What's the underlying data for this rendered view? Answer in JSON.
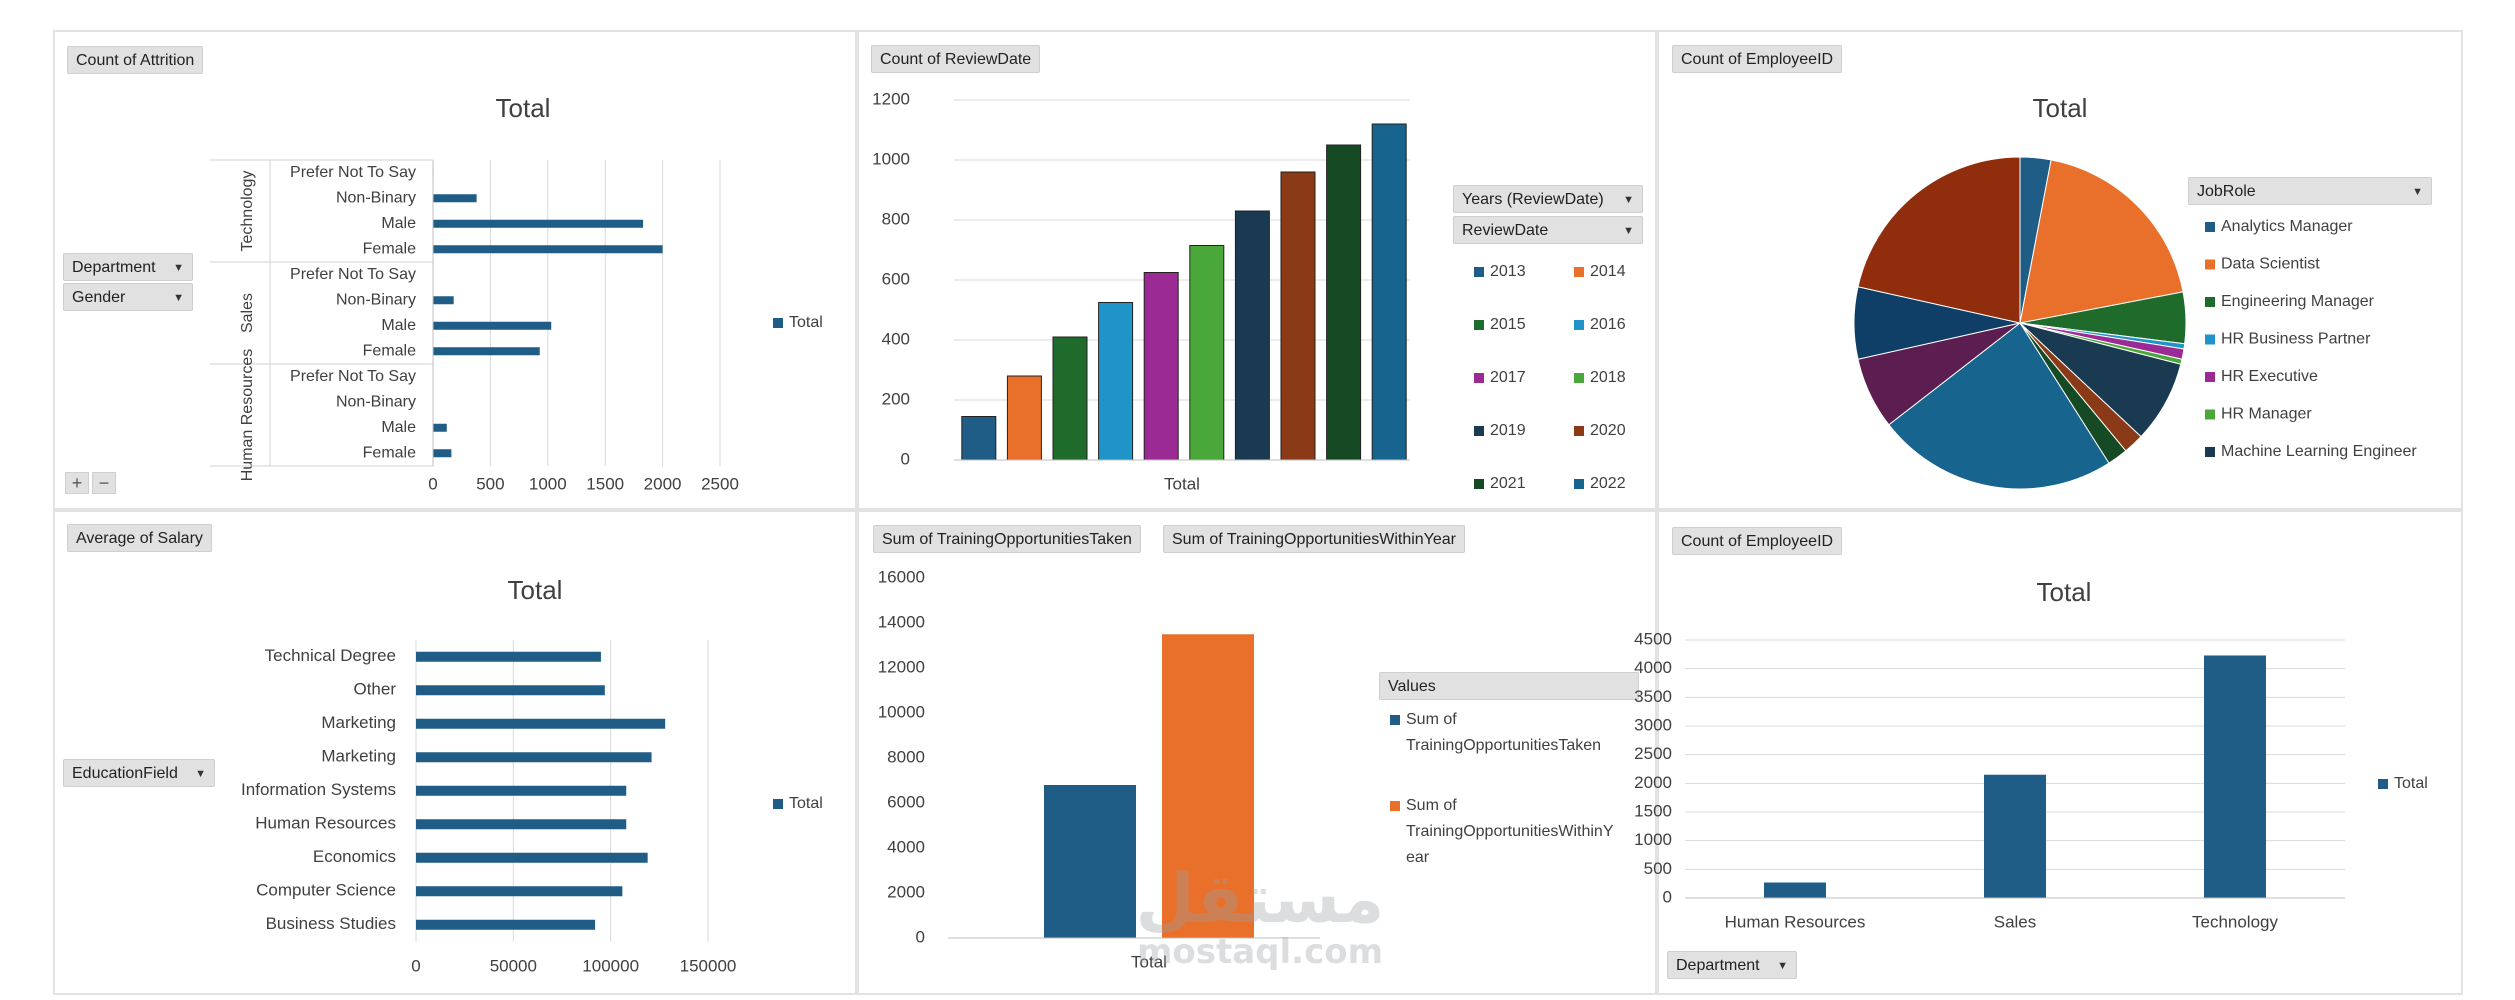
{
  "colors": {
    "navy": "#1f5c86",
    "orange": "#e8702a",
    "pie": [
      "#1f5c86",
      "#e8702a",
      "#1e6b2c",
      "#1e94c8",
      "#9b2a95",
      "#4aa83a",
      "#1a3a52",
      "#8a3a17",
      "#164a25",
      "#17658f",
      "#5c1d50",
      "#0f3f66",
      "#8f2d0c"
    ]
  },
  "panels": {
    "p1": {
      "field_button": "Count of Attrition",
      "filters": [
        "Department",
        "Gender"
      ],
      "plus": "+",
      "minus": "−"
    },
    "p2": {
      "field_button": "Count of ReviewDate",
      "legend_fields": [
        "Years (ReviewDate)",
        "ReviewDate"
      ]
    },
    "p3": {
      "field_button": "Count of EmployeeID",
      "legend_field": "JobRole"
    },
    "p4": {
      "field_button": "Average of Salary",
      "filter": "EducationField"
    },
    "p5": {
      "field_buttons": [
        "Sum of TrainingOpportunitiesTaken",
        "Sum of TrainingOpportunitiesWithinYear"
      ],
      "legend_field": "Values"
    },
    "p6": {
      "field_button": "Count of EmployeeID",
      "filter": "Department"
    }
  },
  "watermark": {
    "arabic": "مستقل",
    "latin": "mostaql.com"
  },
  "chart_data": [
    {
      "type": "bar",
      "orientation": "horizontal",
      "title": "Total",
      "groups": [
        {
          "name": "Technology",
          "categories": [
            "Prefer Not To Say",
            "Non-Binary",
            "Male",
            "Female"
          ],
          "values": [
            5,
            380,
            1830,
            2000
          ]
        },
        {
          "name": "Sales",
          "categories": [
            "Prefer Not To Say",
            "Non-Binary",
            "Male",
            "Female"
          ],
          "values": [
            0,
            180,
            1030,
            930
          ]
        },
        {
          "name": "Human Resources",
          "categories": [
            "Prefer Not To Say",
            "Non-Binary",
            "Male",
            "Female"
          ],
          "values": [
            0,
            0,
            120,
            160
          ]
        }
      ],
      "series": [
        {
          "name": "Total"
        }
      ],
      "xticks": [
        "0",
        "500",
        "1000",
        "1500",
        "2000",
        "2500"
      ],
      "xlim": [
        0,
        2500
      ],
      "legend": "right",
      "grid": true
    },
    {
      "type": "bar",
      "title": "",
      "categories": [
        "Total"
      ],
      "series": [
        {
          "name": "2013",
          "values": [
            145
          ]
        },
        {
          "name": "2014",
          "values": [
            280
          ]
        },
        {
          "name": "2015",
          "values": [
            410
          ]
        },
        {
          "name": "2016",
          "values": [
            525
          ]
        },
        {
          "name": "2017",
          "values": [
            625
          ]
        },
        {
          "name": "2018",
          "values": [
            715
          ]
        },
        {
          "name": "2019",
          "values": [
            830
          ]
        },
        {
          "name": "2020",
          "values": [
            960
          ]
        },
        {
          "name": "2021",
          "values": [
            1050
          ]
        },
        {
          "name": "2022",
          "values": [
            1120
          ]
        }
      ],
      "yticks": [
        "0",
        "200",
        "400",
        "600",
        "800",
        "1000",
        "1200"
      ],
      "ylim": [
        0,
        1200
      ],
      "legend": "right",
      "grid": true
    },
    {
      "type": "pie",
      "title": "Total",
      "labels": [
        "Analytics Manager",
        "Data Scientist",
        "Engineering Manager",
        "HR Business Partner",
        "HR Executive",
        "HR Manager",
        "Machine Learning Engineer",
        "",
        "",
        "",
        "",
        "",
        ""
      ],
      "values": [
        3,
        19,
        5,
        0.5,
        1,
        0.5,
        8,
        2,
        2,
        23.5,
        7,
        7,
        21.5
      ],
      "legend": "right"
    },
    {
      "type": "bar",
      "orientation": "horizontal",
      "title": "Total",
      "categories": [
        "Technical Degree",
        "Other",
        "Marketing",
        "Marketing",
        "Information Systems",
        "Human Resources",
        "Economics",
        "Computer Science",
        "Business Studies"
      ],
      "series": [
        {
          "name": "Total",
          "values": [
            95000,
            97000,
            128000,
            121000,
            108000,
            108000,
            119000,
            106000,
            92000
          ]
        }
      ],
      "xticks": [
        "0",
        "50000",
        "100000",
        "150000"
      ],
      "xlim": [
        0,
        150000
      ],
      "legend": "right",
      "grid": true
    },
    {
      "type": "bar",
      "title": "",
      "categories": [
        "Total"
      ],
      "series": [
        {
          "name": "Sum of TrainingOpportunitiesTaken",
          "values": [
            6800
          ]
        },
        {
          "name": "Sum of TrainingOpportunitiesWithinYear",
          "values": [
            13500
          ]
        }
      ],
      "yticks": [
        "0",
        "2000",
        "4000",
        "6000",
        "8000",
        "10000",
        "12000",
        "14000",
        "16000"
      ],
      "ylim": [
        0,
        16000
      ],
      "legend": "right",
      "grid": true
    },
    {
      "type": "bar",
      "title": "Total",
      "categories": [
        "Human Resources",
        "Sales",
        "Technology"
      ],
      "series": [
        {
          "name": "Total",
          "values": [
            270,
            2150,
            4230
          ]
        }
      ],
      "yticks": [
        "0",
        "500",
        "1000",
        "1500",
        "2000",
        "2500",
        "3000",
        "3500",
        "4000",
        "4500"
      ],
      "ylim": [
        0,
        4500
      ],
      "legend": "right",
      "grid": true
    }
  ]
}
